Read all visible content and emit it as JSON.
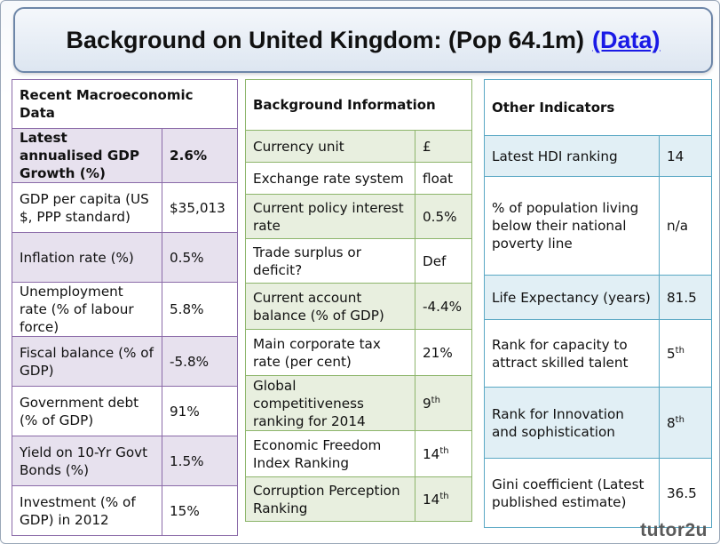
{
  "title": {
    "text": "Background on United Kingdom: (Pop 64.1m)",
    "link": "(Data)"
  },
  "macro": {
    "header": "Recent Macroeconomic Data",
    "rows": [
      {
        "label": "Latest annualised GDP Growth (%)",
        "value": "2.6%"
      },
      {
        "label": "GDP per capita (US $, PPP standard)",
        "value": "$35,013"
      },
      {
        "label": "Inflation rate (%)",
        "value": "0.5%"
      },
      {
        "label": "Unemployment rate (% of labour force)",
        "value": "5.8%"
      },
      {
        "label": "Fiscal balance (% of GDP)",
        "value": "-5.8%"
      },
      {
        "label": "Government debt (% of GDP)",
        "value": "91%"
      },
      {
        "label": "Yield on 10-Yr Govt Bonds (%)",
        "value": "1.5%"
      },
      {
        "label": "Investment (% of GDP) in 2012",
        "value": "15%"
      }
    ]
  },
  "background": {
    "header": "Background Information",
    "rows": [
      {
        "label": "Currency unit",
        "value": "£"
      },
      {
        "label": "Exchange rate system",
        "value": "float"
      },
      {
        "label": "Current policy interest rate",
        "value": "0.5%"
      },
      {
        "label": "Trade surplus or deficit?",
        "value": "Def"
      },
      {
        "label": "Current account balance (% of GDP)",
        "value": "-4.4%"
      },
      {
        "label": "Main corporate tax rate (per cent)",
        "value": "21%"
      },
      {
        "label": "Global competitiveness ranking for 2014",
        "value": "9",
        "sup": "th"
      },
      {
        "label": "Economic Freedom Index Ranking",
        "value": "14",
        "sup": "th"
      },
      {
        "label": "Corruption Perception Ranking",
        "value": "14",
        "sup": "th"
      }
    ]
  },
  "other": {
    "header": "Other Indicators",
    "rows": [
      {
        "label": "Latest HDI ranking",
        "value": "14"
      },
      {
        "label": "% of population living below their national poverty line",
        "value": "n/a"
      },
      {
        "label": "Life Expectancy (years)",
        "value": "81.5"
      },
      {
        "label": "Rank for capacity to attract skilled talent",
        "value": "5",
        "sup": "th"
      },
      {
        "label": "Rank for Innovation and sophistication",
        "value": "8",
        "sup": "th"
      },
      {
        "label": "Gini coefficient (Latest published estimate)",
        "value": "36.5"
      }
    ]
  },
  "logo": "tutor2u"
}
